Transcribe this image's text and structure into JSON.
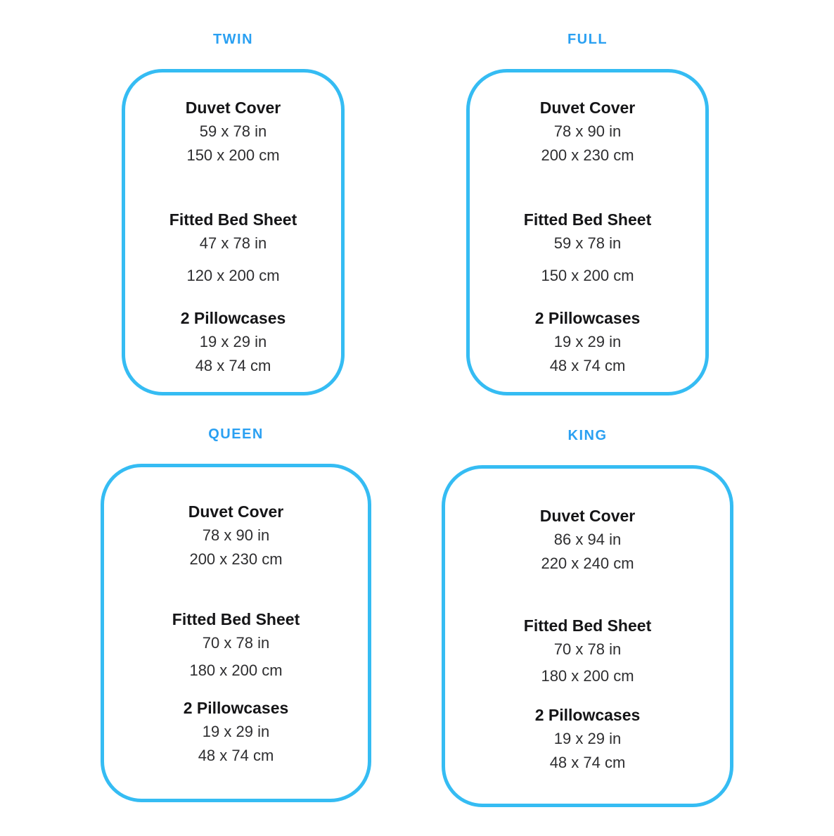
{
  "colors": {
    "accent_blue": "#2aa0f2",
    "border_blue": "#35bcf3",
    "text_dark": "#151517"
  },
  "cards": [
    {
      "id": "twin",
      "title": "TWIN",
      "sections": [
        {
          "label": "Duvet Cover",
          "line_in": "59 x 78 in",
          "line_cm": "150 x 200 cm"
        },
        {
          "label": "Fitted Bed Sheet",
          "line_in": "47 x 78 in",
          "line_cm": "120 x 200 cm"
        },
        {
          "label": "2 Pillowcases",
          "line_in": "19 x 29 in",
          "line_cm": "48 x 74 cm"
        }
      ]
    },
    {
      "id": "full",
      "title": "FULL",
      "sections": [
        {
          "label": "Duvet Cover",
          "line_in": "78 x 90 in",
          "line_cm": "200 x 230 cm"
        },
        {
          "label": "Fitted Bed Sheet",
          "line_in": "59 x 78 in",
          "line_cm": "150 x 200 cm"
        },
        {
          "label": "2 Pillowcases",
          "line_in": "19 x 29 in",
          "line_cm": "48 x 74 cm"
        }
      ]
    },
    {
      "id": "queen",
      "title": "QUEEN",
      "sections": [
        {
          "label": "Duvet Cover",
          "line_in": "78 x 90 in",
          "line_cm": "200 x 230 cm"
        },
        {
          "label": "Fitted Bed Sheet",
          "line_in": "70 x 78 in",
          "line_cm": "180 x 200 cm"
        },
        {
          "label": "2 Pillowcases",
          "line_in": "19 x 29 in",
          "line_cm": "48 x 74 cm"
        }
      ]
    },
    {
      "id": "king",
      "title": "KING",
      "sections": [
        {
          "label": "Duvet Cover",
          "line_in": "86 x 94 in",
          "line_cm": "220 x 240 cm"
        },
        {
          "label": "Fitted Bed Sheet",
          "line_in": "70 x 78 in",
          "line_cm": "180 x 200 cm"
        },
        {
          "label": "2 Pillowcases",
          "line_in": "19 x 29 in",
          "line_cm": "48 x 74 cm"
        }
      ]
    }
  ]
}
